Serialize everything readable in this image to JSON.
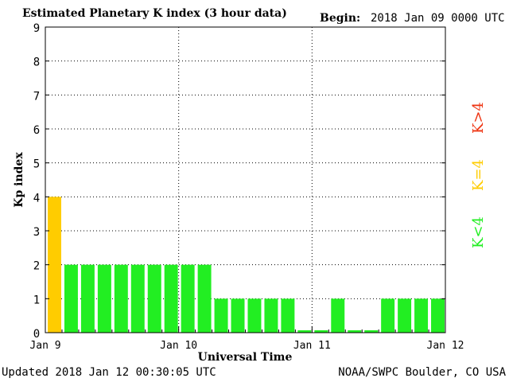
{
  "header": {
    "title": "Estimated Planetary K index (3 hour data)",
    "begin_label": "Begin:",
    "begin_value": "2018 Jan 09 0000 UTC"
  },
  "footer": {
    "updated": "Updated 2018 Jan 12 00:30:05 UTC",
    "source": "NOAA/SWPC Boulder, CO USA"
  },
  "legend": {
    "low": {
      "label": "K<4",
      "color": "#22ee22"
    },
    "mid": {
      "label": "K=4",
      "color": "#ffcc00"
    },
    "high": {
      "label": "K>4",
      "color": "#ee3311"
    }
  },
  "chart_data": {
    "type": "bar",
    "xlabel": "Universal Time",
    "ylabel": "Kp index",
    "ylim": [
      0,
      9
    ],
    "yticks": [
      0,
      1,
      2,
      3,
      4,
      5,
      6,
      7,
      8,
      9
    ],
    "grid": "dotted",
    "x_tick_labels": [
      "Jan 9",
      "Jan 10",
      "Jan 11",
      "Jan 12"
    ],
    "interval_hours": 3,
    "values": [
      4,
      2,
      2,
      2,
      2,
      2,
      2,
      2,
      2,
      2,
      1,
      1,
      1,
      1,
      1,
      0.07,
      0.07,
      1,
      0.07,
      0.07,
      1,
      1,
      1,
      1
    ],
    "bar_colors": [
      "#ffcc00",
      "#22ee22",
      "#22ee22",
      "#22ee22",
      "#22ee22",
      "#22ee22",
      "#22ee22",
      "#22ee22",
      "#22ee22",
      "#22ee22",
      "#22ee22",
      "#22ee22",
      "#22ee22",
      "#22ee22",
      "#22ee22",
      "#22ee22",
      "#22ee22",
      "#22ee22",
      "#22ee22",
      "#22ee22",
      "#22ee22",
      "#22ee22",
      "#22ee22",
      "#22ee22"
    ]
  }
}
